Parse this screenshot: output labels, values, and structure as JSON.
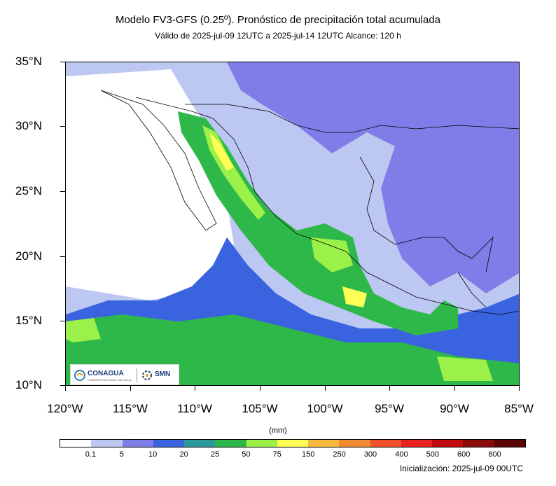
{
  "title": "Modelo FV3-GFS (0.25º). Pronóstico de precipitación total acumulada",
  "subtitle": "Válido de 2025-jul-09 12UTC a 2025-jul-14 12UTC    Alcance: 120 h",
  "lat_labels": [
    "35°N",
    "30°N",
    "25°N",
    "20°N",
    "15°N",
    "10°N"
  ],
  "lon_labels": [
    "120°W",
    "115°W",
    "110°W",
    "105°W",
    "100°W",
    "95°W",
    "90°W",
    "85°W"
  ],
  "units": "(mm)",
  "colorbar": {
    "colors": [
      "#ffffff",
      "#bcc7f2",
      "#7f7de8",
      "#3a63e0",
      "#2a9a9a",
      "#2fb84a",
      "#9cf04a",
      "#ffff55",
      "#f5b940",
      "#f08a30",
      "#f0502a",
      "#e8221f",
      "#c00a10",
      "#8a0a0a",
      "#5a0505"
    ],
    "labels": [
      "0.1",
      "5",
      "10",
      "20",
      "25",
      "50",
      "75",
      "150",
      "250",
      "300",
      "400",
      "500",
      "600",
      "800"
    ]
  },
  "init": "Inicialización: 2025-jul-09 00UTC",
  "logos": {
    "conagua": "CONAGUA",
    "conagua_sub": "COMISIÓN NACIONAL DEL AGUA",
    "smn": "SMN"
  }
}
